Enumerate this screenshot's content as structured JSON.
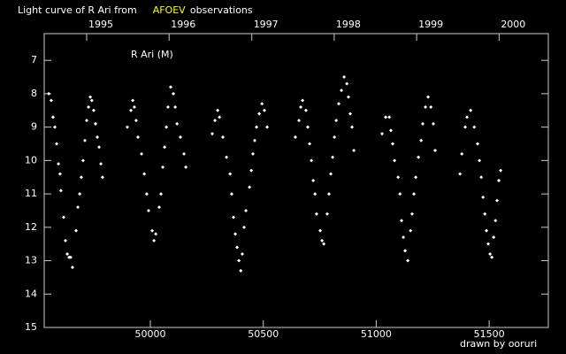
{
  "chart_data": {
    "type": "scatter",
    "title": "Light curve of R Ari from",
    "title_source": "AFOEV",
    "title_source_color": "#ffff00",
    "title_suffix": "observations",
    "annotation": "R Ari (M)",
    "credit": "drawn by ooruri",
    "credit_color": "#33ccff",
    "background": "#000000",
    "axis_color": "#cccccc",
    "xlim": [
      49530,
      51762
    ],
    "xticks": [
      50000,
      50500,
      51000,
      51500
    ],
    "x2ticks": [
      {
        "value": 49718,
        "label": "1995"
      },
      {
        "value": 50083,
        "label": "1996"
      },
      {
        "value": 50449,
        "label": "1997"
      },
      {
        "value": 50814,
        "label": "1998"
      },
      {
        "value": 51179,
        "label": "1999"
      },
      {
        "value": 51544,
        "label": "2000"
      }
    ],
    "ylim": [
      15,
      6.2
    ],
    "yticks": [
      7,
      8,
      9,
      10,
      11,
      12,
      13,
      14,
      15
    ],
    "series": [
      {
        "color": "#ffffff",
        "x": [
          49550,
          49561,
          49569,
          49577,
          49585,
          49593,
          49600,
          49604,
          49616,
          49624,
          49632,
          49640,
          49647,
          49655,
          49671,
          49679,
          49687,
          49694,
          49702,
          49710,
          49718,
          49726,
          49734,
          49741,
          49749,
          49757,
          49765,
          49773,
          49781,
          49788,
          49898,
          49914,
          49922,
          49929,
          49937,
          49945,
          49961,
          49973,
          49984,
          49992,
          50008,
          50016,
          50024,
          50039,
          50047,
          50055,
          50063,
          50071,
          50078,
          50090,
          50102,
          50110,
          50118,
          50133,
          50149,
          50157,
          50274,
          50286,
          50298,
          50306,
          50321,
          50337,
          50353,
          50360,
          50368,
          50376,
          50384,
          50392,
          50400,
          50407,
          50415,
          50423,
          50439,
          50447,
          50454,
          50462,
          50470,
          50482,
          50494,
          50505,
          50517,
          50642,
          50658,
          50666,
          50674,
          50689,
          50697,
          50705,
          50713,
          50721,
          50729,
          50736,
          50752,
          50760,
          50768,
          50783,
          50791,
          50799,
          50807,
          50815,
          50823,
          50834,
          50846,
          50858,
          50870,
          50877,
          50885,
          50893,
          50901,
          51026,
          51042,
          51058,
          51065,
          51073,
          51081,
          51097,
          51105,
          51112,
          51120,
          51128,
          51140,
          51152,
          51159,
          51167,
          51175,
          51187,
          51199,
          51206,
          51218,
          51230,
          51242,
          51253,
          51261,
          51371,
          51379,
          51394,
          51402,
          51418,
          51434,
          51449,
          51457,
          51465,
          51473,
          51481,
          51488,
          51496,
          51504,
          51512,
          51520,
          51528,
          51535,
          51543,
          51551
        ],
        "values": [
          8.0,
          8.2,
          8.7,
          9.0,
          9.5,
          10.1,
          10.4,
          10.9,
          11.7,
          12.4,
          12.8,
          12.9,
          12.9,
          13.2,
          12.1,
          11.4,
          11.0,
          10.5,
          10.0,
          9.4,
          8.8,
          8.4,
          8.1,
          8.2,
          8.5,
          8.9,
          9.3,
          9.6,
          10.1,
          10.5,
          9.0,
          8.5,
          8.2,
          8.4,
          8.8,
          9.3,
          9.8,
          10.4,
          11.0,
          11.5,
          12.1,
          12.4,
          12.2,
          11.4,
          11.0,
          10.2,
          9.6,
          9.0,
          8.4,
          7.8,
          8.0,
          8.4,
          8.9,
          9.3,
          9.8,
          10.2,
          9.2,
          8.8,
          8.5,
          8.7,
          9.3,
          9.9,
          10.4,
          11.0,
          11.7,
          12.2,
          12.6,
          13.0,
          13.3,
          12.8,
          12.0,
          11.5,
          10.8,
          10.3,
          9.8,
          9.4,
          9.0,
          8.6,
          8.3,
          8.5,
          9.0,
          9.3,
          8.8,
          8.4,
          8.2,
          8.5,
          9.0,
          9.5,
          10.0,
          10.6,
          11.0,
          11.6,
          12.1,
          12.4,
          12.5,
          11.6,
          11.0,
          10.4,
          9.9,
          9.3,
          8.8,
          8.3,
          7.9,
          7.5,
          7.7,
          8.1,
          8.6,
          9.0,
          9.7,
          9.2,
          8.7,
          8.7,
          9.1,
          9.5,
          10.0,
          10.5,
          11.0,
          11.8,
          12.3,
          12.7,
          13.0,
          12.1,
          11.6,
          11.0,
          10.5,
          9.9,
          9.4,
          8.9,
          8.4,
          8.1,
          8.4,
          8.9,
          9.7,
          10.4,
          9.8,
          9.0,
          8.7,
          8.5,
          9.0,
          9.5,
          10.0,
          10.5,
          11.1,
          11.6,
          12.1,
          12.5,
          12.8,
          12.9,
          12.3,
          11.8,
          11.2,
          10.6,
          10.3
        ]
      }
    ]
  }
}
